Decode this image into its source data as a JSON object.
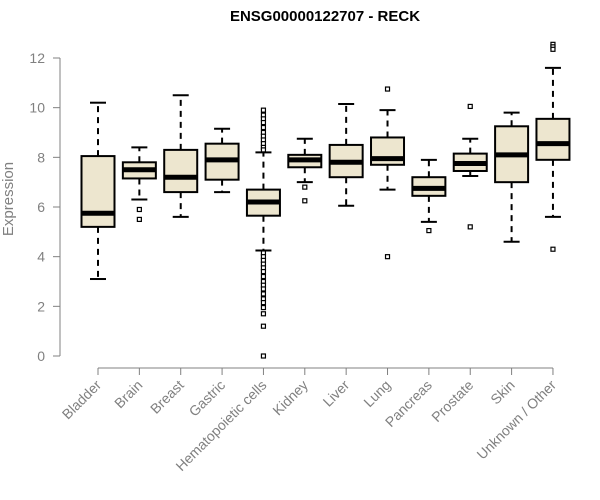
{
  "chart_data": {
    "type": "boxplot",
    "title": "ENSG00000122707 - RECK",
    "xlabel": "",
    "ylabel": "Expression",
    "ylim": [
      0,
      12
    ],
    "yticks": [
      0,
      2,
      4,
      6,
      8,
      10,
      12
    ],
    "grid": false,
    "legend": "none",
    "colors": {
      "box_fill": "#ede6cf",
      "box_stroke": "#000000",
      "axis": "#808080"
    },
    "categories": [
      "Bladder",
      "Brain",
      "Breast",
      "Gastric",
      "Hematopoietic cells",
      "Kidney",
      "Liver",
      "Lung",
      "Pancreas",
      "Prostate",
      "Skin",
      "Unknown / Other"
    ],
    "boxes": [
      {
        "min": 3.1,
        "q1": 5.2,
        "median": 5.75,
        "q3": 8.05,
        "max": 10.2,
        "outliers": []
      },
      {
        "min": 6.3,
        "q1": 7.15,
        "median": 7.5,
        "q3": 7.8,
        "max": 8.4,
        "outliers": [
          5.9,
          5.5
        ]
      },
      {
        "min": 5.6,
        "q1": 6.6,
        "median": 7.2,
        "q3": 8.3,
        "max": 10.5,
        "outliers": []
      },
      {
        "min": 6.6,
        "q1": 7.1,
        "median": 7.9,
        "q3": 8.55,
        "max": 9.15,
        "outliers": []
      },
      {
        "min": 4.25,
        "q1": 5.65,
        "median": 6.2,
        "q3": 6.7,
        "max": 8.2,
        "outliers": [
          9.9,
          9.7,
          9.55,
          9.4,
          9.2,
          9.0,
          8.85,
          8.7,
          8.55,
          8.4,
          8.3,
          4.15,
          4.0,
          3.85,
          3.7,
          3.55,
          3.4,
          3.2,
          3.0,
          2.85,
          2.7,
          2.5,
          2.3,
          2.15,
          1.95,
          1.7,
          1.2,
          0.0
        ]
      },
      {
        "min": 7.0,
        "q1": 7.6,
        "median": 7.9,
        "q3": 8.1,
        "max": 8.75,
        "outliers": [
          6.8,
          6.25
        ]
      },
      {
        "min": 6.05,
        "q1": 7.2,
        "median": 7.8,
        "q3": 8.5,
        "max": 10.15,
        "outliers": []
      },
      {
        "min": 6.7,
        "q1": 7.7,
        "median": 7.95,
        "q3": 8.8,
        "max": 9.9,
        "outliers": [
          10.75,
          4.0
        ]
      },
      {
        "min": 5.4,
        "q1": 6.45,
        "median": 6.75,
        "q3": 7.2,
        "max": 7.9,
        "outliers": [
          5.05
        ]
      },
      {
        "min": 7.25,
        "q1": 7.45,
        "median": 7.75,
        "q3": 8.15,
        "max": 8.75,
        "outliers": [
          10.05,
          5.2
        ]
      },
      {
        "min": 4.6,
        "q1": 7.0,
        "median": 8.1,
        "q3": 9.25,
        "max": 9.8,
        "outliers": []
      },
      {
        "min": 5.6,
        "q1": 7.9,
        "median": 8.55,
        "q3": 9.55,
        "max": 11.6,
        "outliers": [
          12.55,
          12.45,
          12.35,
          4.3
        ]
      }
    ]
  }
}
